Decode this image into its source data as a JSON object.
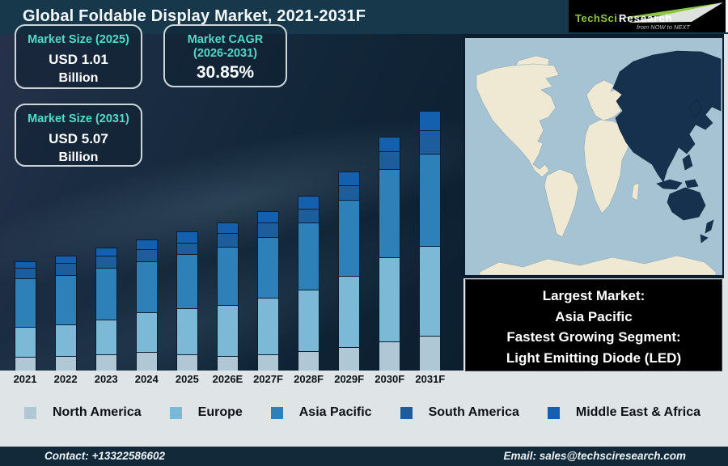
{
  "header": {
    "title": "Global Foldable Display Market, 2021-2031F",
    "logo": {
      "brand": "TechSci",
      "brand2": "Research",
      "tagline": "from NOW to NEXT",
      "brand_color": "#8dc63f"
    }
  },
  "stats": [
    {
      "label": "Market Size (2025)",
      "value": "USD 1.01",
      "unit": "Billion"
    },
    {
      "label": "Market CAGR",
      "sublabel": "(2026-2031)",
      "value": "30.85%"
    },
    {
      "label": "Market Size (2031)",
      "value": "USD 5.07",
      "unit": "Billion"
    }
  ],
  "chart_data": {
    "type": "bar",
    "stacked": true,
    "title": "Global Foldable Display Market, 2021-2031F",
    "categories": [
      "2021",
      "2022",
      "2023",
      "2024",
      "2025",
      "2026E",
      "2027F",
      "2028F",
      "2029F",
      "2030F",
      "2031F"
    ],
    "value_axis_note": "no numeric y-axis shown; values are relative stacked-segment heights (px) estimated from the figure",
    "series": [
      {
        "name": "North America",
        "color": "#b0c8d5",
        "values": [
          17,
          18,
          20,
          23,
          20,
          18,
          20,
          24,
          29,
          36,
          43
        ]
      },
      {
        "name": "Europe",
        "color": "#7bb9d6",
        "values": [
          37,
          39,
          43,
          49,
          57,
          63,
          70,
          76,
          88,
          104,
          111
        ]
      },
      {
        "name": "Asia Pacific",
        "color": "#2e80b8",
        "values": [
          60,
          61,
          64,
          63,
          67,
          72,
          75,
          83,
          94,
          109,
          114
        ]
      },
      {
        "name": "South America",
        "color": "#1e5d9c",
        "values": [
          13,
          15,
          15,
          15,
          14,
          17,
          18,
          17,
          18,
          22,
          29
        ]
      },
      {
        "name": "Middle East & Africa",
        "color": "#1560ae",
        "values": [
          8,
          9,
          10,
          12,
          14,
          13,
          14,
          16,
          17,
          18,
          24
        ]
      }
    ],
    "legend_position": "bottom",
    "grid": false,
    "annotations": {
      "market_size_2025": "USD 1.01 Billion",
      "market_size_2031": "USD 5.07 Billion",
      "cagr_2026_2031": "30.85%"
    }
  },
  "map": {
    "highlighted_region": "Asia Pacific",
    "ocean_color": "#a6c3d3",
    "land_color": "#efe9d3",
    "highlight_color": "#16314e"
  },
  "highlight_box": {
    "lines": [
      "Largest Market:",
      "Asia Pacific",
      "Fastest Growing Segment:",
      "Light Emitting Diode (LED)"
    ]
  },
  "footer": {
    "contact": "Contact: +13322586602",
    "email": "Email: sales@techsciresearch.com"
  }
}
